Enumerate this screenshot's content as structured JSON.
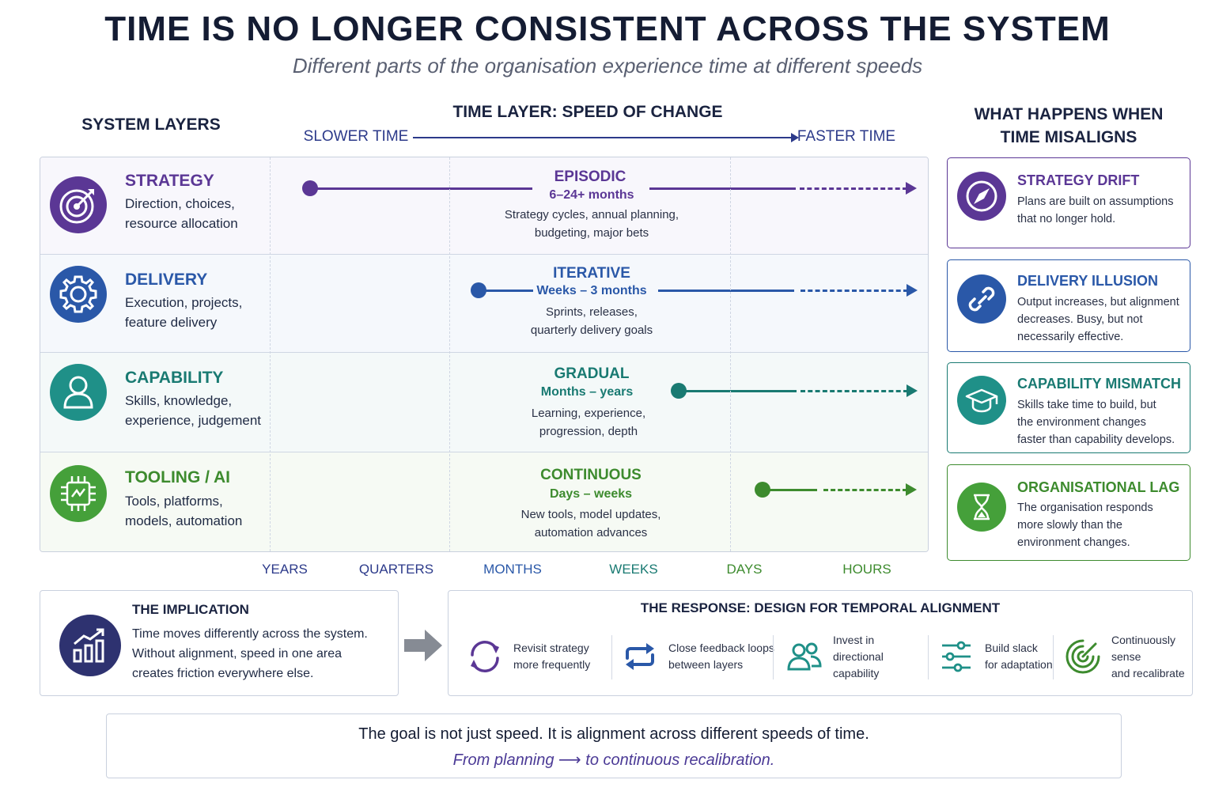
{
  "title": "TIME IS NO LONGER CONSISTENT ACROSS THE SYSTEM",
  "subtitle": "Different parts of the organisation experience time at different speeds",
  "headers": {
    "system_layers": "SYSTEM LAYERS",
    "time_layer": "TIME LAYER: SPEED OF CHANGE",
    "slower": "SLOWER TIME",
    "faster": "FASTER TIME",
    "misaligns_1": "WHAT HAPPENS WHEN",
    "misaligns_2": "TIME MISALIGNS"
  },
  "layers": [
    {
      "name": "STRATEGY",
      "desc_1": "Direction, choices,",
      "desc_2": "resource allocation",
      "speed": "EPISODIC",
      "range": "6–24+ months",
      "speed_desc_1": "Strategy cycles, annual planning,",
      "speed_desc_2": "budgeting, major bets",
      "color": "#5b3795",
      "bg": "#f8f7fc",
      "icon": "target-icon"
    },
    {
      "name": "DELIVERY",
      "desc_1": "Execution, projects,",
      "desc_2": "feature delivery",
      "speed": "ITERATIVE",
      "range": "Weeks – 3 months",
      "speed_desc_1": "Sprints, releases,",
      "speed_desc_2": "quarterly delivery goals",
      "color": "#2a58a8",
      "bg": "#f5f8fc",
      "icon": "gear-icon"
    },
    {
      "name": "CAPABILITY",
      "desc_1": "Skills, knowledge,",
      "desc_2": "experience, judgement",
      "speed": "GRADUAL",
      "range": "Months – years",
      "speed_desc_1": "Learning, experience,",
      "speed_desc_2": "progression, depth",
      "color": "#197a72",
      "bg": "#f4f9f9",
      "icon": "person-icon"
    },
    {
      "name": "TOOLING / AI",
      "desc_1": "Tools, platforms,",
      "desc_2": "models, automation",
      "speed": "CONTINUOUS",
      "range": "Days – weeks",
      "speed_desc_1": "New tools, model updates,",
      "speed_desc_2": "automation advances",
      "color": "#3d8b2e",
      "bg": "#f6faf4",
      "icon": "chip-icon"
    }
  ],
  "scale": [
    "YEARS",
    "QUARTERS",
    "MONTHS",
    "WEEKS",
    "DAYS",
    "HOURS"
  ],
  "scale_colors": [
    "#2c3a8a",
    "#2c3a8a",
    "#2a58a8",
    "#197a72",
    "#3d8b2e",
    "#3d8b2e"
  ],
  "misalign": [
    {
      "title": "STRATEGY DRIFT",
      "lines": [
        "Plans are built on assumptions",
        "that no longer hold."
      ],
      "color": "#5b3795",
      "icon": "compass-icon"
    },
    {
      "title": "DELIVERY ILLUSION",
      "lines": [
        "Output increases, but alignment",
        "decreases. Busy, but not",
        "necessarily effective."
      ],
      "color": "#2a58a8",
      "icon": "link-icon"
    },
    {
      "title": "CAPABILITY MISMATCH",
      "lines": [
        "Skills take time to build, but",
        "the environment changes",
        "faster than capability develops."
      ],
      "color": "#197a72",
      "icon": "graduation-cap-icon"
    },
    {
      "title": "ORGANISATIONAL LAG",
      "lines": [
        "The organisation responds",
        "more slowly than the",
        "environment changes."
      ],
      "color": "#3d8b2e",
      "icon": "hourglass-icon"
    }
  ],
  "implication": {
    "title": "THE IMPLICATION",
    "lines": [
      "Time moves differently across the system.",
      "Without alignment, speed in one area",
      "creates friction everywhere else."
    ]
  },
  "response": {
    "title": "THE RESPONSE: DESIGN FOR TEMPORAL ALIGNMENT",
    "items": [
      {
        "l1": "Revisit strategy",
        "l2": "more frequently",
        "icon": "refresh-icon",
        "color": "#5b3795"
      },
      {
        "l1": "Close feedback loops",
        "l2": "between layers",
        "icon": "loop-icon",
        "color": "#2a58a8"
      },
      {
        "l1": "Invest in directional",
        "l2": "capability",
        "icon": "people-icon",
        "color": "#197a72"
      },
      {
        "l1": "Build slack",
        "l2": "for adaptation",
        "icon": "sliders-icon",
        "color": "#197a72"
      },
      {
        "l1": "Continuously sense",
        "l2": "and recalibrate",
        "icon": "radar-icon",
        "color": "#3d8b2e"
      }
    ]
  },
  "goal": {
    "main": "The goal is not just speed. It is alignment across different speeds of time.",
    "sub": "From planning ⟶ to continuous recalibration."
  }
}
